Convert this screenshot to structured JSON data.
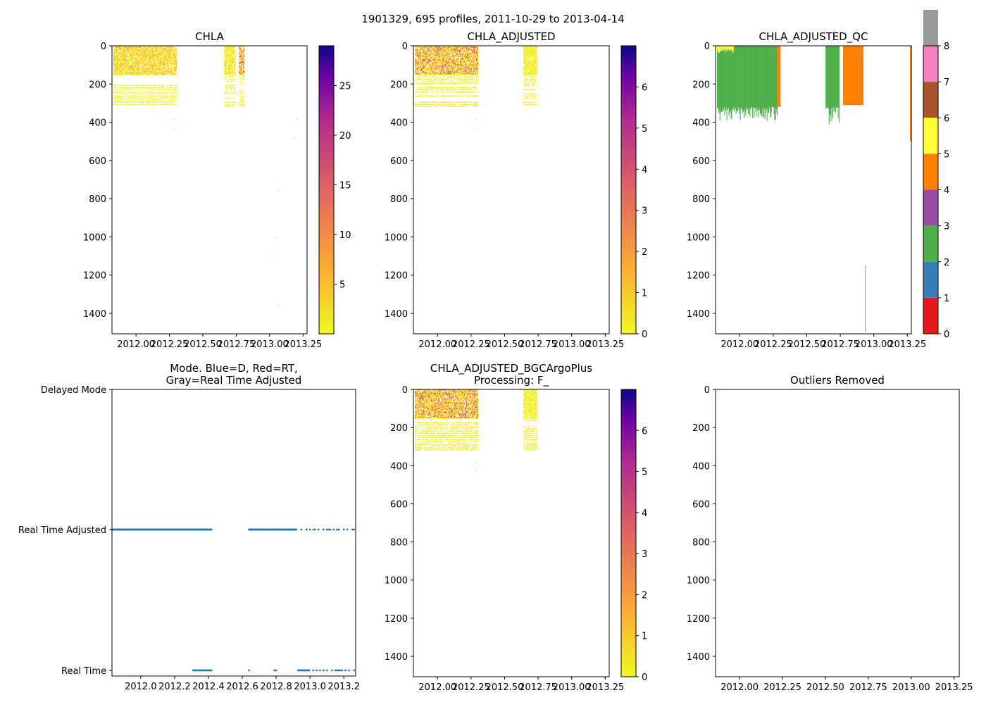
{
  "suptitle": "1901329, 695 profiles, 2011-10-29 to 2013-04-14",
  "chart_data": [
    {
      "type": "heatmap",
      "title": "CHLA",
      "xlim": [
        2011.82,
        2013.28
      ],
      "ylim": [
        1507,
        0
      ],
      "xticks": [
        "2012.00",
        "2012.25",
        "2012.50",
        "2012.75",
        "2013.00",
        "2013.25"
      ],
      "yticks": [
        "0",
        "200",
        "400",
        "600",
        "800",
        "1000",
        "1200",
        "1400"
      ],
      "colorbar": {
        "range": [
          0,
          29
        ],
        "ticks": [
          "5",
          "10",
          "15",
          "20",
          "25"
        ],
        "cmap": "plasma_r"
      },
      "blocks": [
        {
          "t": [
            2011.83,
            2012.3
          ],
          "depth": [
            0,
            320
          ],
          "max": 12
        },
        {
          "t": [
            2012.66,
            2012.74
          ],
          "depth": [
            0,
            320
          ],
          "max": 6
        },
        {
          "t": [
            2012.77,
            2012.81
          ],
          "depth": [
            0,
            320
          ],
          "max": 28
        }
      ],
      "sparse": [
        [
          2012.28,
          380
        ],
        [
          2012.29,
          430
        ],
        [
          2013.2,
          380
        ],
        [
          2013.17,
          480
        ],
        [
          2013.07,
          750
        ],
        [
          2013.05,
          1000
        ],
        [
          2013.0,
          1100
        ],
        [
          2013.06,
          1350
        ]
      ]
    },
    {
      "type": "heatmap",
      "title": "CHLA_ADJUSTED",
      "xlim": [
        2011.82,
        2013.28
      ],
      "ylim": [
        1507,
        0
      ],
      "xticks": [
        "2012.00",
        "2012.25",
        "2012.50",
        "2012.75",
        "2013.00",
        "2013.25"
      ],
      "yticks": [
        "0",
        "200",
        "400",
        "600",
        "800",
        "1000",
        "1200",
        "1400"
      ],
      "colorbar": {
        "range": [
          0,
          7
        ],
        "ticks": [
          "0",
          "1",
          "2",
          "3",
          "4",
          "5",
          "6"
        ],
        "cmap": "plasma_r"
      },
      "blocks": [
        {
          "t": [
            2011.83,
            2012.3
          ],
          "depth": [
            0,
            320
          ],
          "max": 6.5
        },
        {
          "t": [
            2012.64,
            2012.74
          ],
          "depth": [
            0,
            310
          ],
          "max": 1
        }
      ],
      "sparse": [
        [
          2012.28,
          380
        ],
        [
          2012.29,
          430
        ]
      ]
    },
    {
      "type": "heatmap",
      "title": "CHLA_ADJUSTED_QC",
      "xlim": [
        2011.82,
        2013.28
      ],
      "ylim": [
        1507,
        0
      ],
      "xticks": [
        "2012.00",
        "2012.25",
        "2012.50",
        "2012.75",
        "2013.00",
        "2013.25"
      ],
      "yticks": [
        "0",
        "200",
        "400",
        "600",
        "800",
        "1000",
        "1200",
        "1400"
      ],
      "colorbar": {
        "range": [
          0,
          8
        ],
        "ticks": [
          "0",
          "1",
          "2",
          "3",
          "4",
          "5",
          "6",
          "7",
          "8"
        ],
        "colors": [
          "#e41a1c",
          "#377eb8",
          "#4daf4a",
          "#984ea3",
          "#ff7f00",
          "#ffff33",
          "#a65628",
          "#f781bf",
          "#999999"
        ]
      },
      "qc_blocks": [
        {
          "t": [
            2011.83,
            2012.28
          ],
          "depth": [
            0,
            320
          ],
          "flag": 2
        },
        {
          "t": [
            2011.83,
            2011.95
          ],
          "depth": [
            0,
            40
          ],
          "flag": 5
        },
        {
          "t": [
            2012.28,
            2012.3
          ],
          "depth": [
            0,
            320
          ],
          "flag": 4
        },
        {
          "t": [
            2012.64,
            2012.74
          ],
          "depth": [
            0,
            320
          ],
          "flag": 2
        },
        {
          "t": [
            2012.77,
            2012.92
          ],
          "depth": [
            0,
            310
          ],
          "flag": 4
        },
        {
          "t": [
            2013.27,
            2013.28
          ],
          "depth": [
            0,
            500
          ],
          "flag": 4
        },
        {
          "t": [
            2012.934,
            2012.938
          ],
          "depth": [
            1150,
            1500
          ],
          "flag": 8
        }
      ]
    },
    {
      "type": "scatter",
      "title": "Mode. Blue=D, Red=RT,\nGray=Real Time Adjusted",
      "xlim": [
        2011.83,
        2013.27
      ],
      "xticks": [
        "2012.0",
        "2012.2",
        "2012.4",
        "2012.6",
        "2012.8",
        "2013.0",
        "2013.2"
      ],
      "yticks": [
        "Delayed Mode",
        "Real Time Adjusted",
        "Real Time"
      ],
      "rta_ranges": [
        [
          2011.83,
          2012.42
        ],
        [
          2012.64,
          2012.92
        ]
      ],
      "rta_sparse": [
        2012.95,
        2012.98,
        2013.0,
        2013.02,
        2013.03,
        2013.05,
        2013.08,
        2013.1,
        2013.11,
        2013.12,
        2013.14,
        2013.16,
        2013.17,
        2013.2,
        2013.22,
        2013.25,
        2013.26
      ],
      "rt_ranges": [
        [
          2012.31,
          2012.42
        ],
        [
          2012.93,
          2013.0
        ]
      ],
      "rt_sparse": [
        2012.64,
        2012.79,
        2012.8,
        2013.02,
        2013.04,
        2013.06,
        2013.08,
        2013.1,
        2013.13,
        2013.15,
        2013.16,
        2013.17,
        2013.18,
        2013.19,
        2013.21,
        2013.23,
        2013.26
      ]
    },
    {
      "type": "heatmap",
      "title": "CHLA_ADJUSTED_BGCArgoPlus\nProcessing: F_",
      "xlim": [
        2011.82,
        2013.28
      ],
      "ylim": [
        1507,
        0
      ],
      "xticks": [
        "2012.00",
        "2012.25",
        "2012.50",
        "2012.75",
        "2013.00",
        "2013.25"
      ],
      "yticks": [
        "0",
        "200",
        "400",
        "600",
        "800",
        "1000",
        "1200",
        "1400"
      ],
      "colorbar": {
        "range": [
          0,
          7
        ],
        "ticks": [
          "0",
          "1",
          "2",
          "3",
          "4",
          "5",
          "6"
        ],
        "cmap": "plasma_r"
      },
      "blocks": [
        {
          "t": [
            2011.83,
            2012.3
          ],
          "depth": [
            0,
            320
          ],
          "max": 6.5
        },
        {
          "t": [
            2012.64,
            2012.74
          ],
          "depth": [
            0,
            320
          ],
          "max": 1
        }
      ],
      "sparse": [
        [
          2012.28,
          380
        ],
        [
          2012.29,
          420
        ]
      ]
    },
    {
      "type": "heatmap",
      "title": "Outliers Removed",
      "xlim": [
        2011.86,
        2013.28
      ],
      "ylim": [
        1507,
        0
      ],
      "xticks": [
        "2012.00",
        "2012.25",
        "2012.50",
        "2012.75",
        "2013.00",
        "2013.25"
      ],
      "yticks": [
        "0",
        "200",
        "400",
        "600",
        "800",
        "1000",
        "1200",
        "1400"
      ]
    }
  ]
}
